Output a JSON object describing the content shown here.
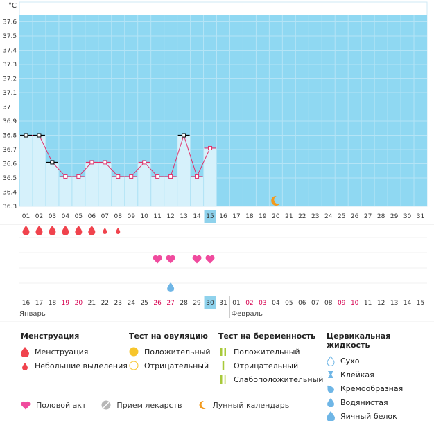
{
  "chart_data": {
    "type": "line",
    "unit_label": "°C",
    "y_ticks": [
      "36.3",
      "36.4",
      "36.5",
      "36.6",
      "36.7",
      "36.8",
      "36.9",
      "37",
      "37.1",
      "37.2",
      "37.3",
      "37.4",
      "37.5",
      "37.6"
    ],
    "ylim": [
      36.3,
      37.65
    ],
    "cycle_days": [
      "01",
      "02",
      "03",
      "04",
      "05",
      "06",
      "07",
      "08",
      "09",
      "10",
      "11",
      "12",
      "13",
      "14",
      "15",
      "16",
      "17",
      "18",
      "19",
      "20",
      "21",
      "22",
      "23",
      "24",
      "25",
      "26",
      "27",
      "28",
      "29",
      "30",
      "31"
    ],
    "today_index": 14,
    "temperatures": [
      36.8,
      36.8,
      36.61,
      36.51,
      36.51,
      36.61,
      36.61,
      36.51,
      36.51,
      36.61,
      36.51,
      36.51,
      36.8,
      36.51,
      36.71
    ],
    "point_colors": [
      "#000000",
      "#000000",
      "#000000",
      "#e0306a",
      "#e0306a",
      "#e0306a",
      "#e0306a",
      "#e0306a",
      "#e0306a",
      "#e0306a",
      "#e0306a",
      "#e0306a",
      "#000000",
      "#e0306a",
      "#e0306a"
    ],
    "moon_day_index": 19,
    "menstruation": [
      {
        "day_index": 0,
        "type": "menstruation"
      },
      {
        "day_index": 1,
        "type": "menstruation"
      },
      {
        "day_index": 2,
        "type": "menstruation"
      },
      {
        "day_index": 3,
        "type": "menstruation"
      },
      {
        "day_index": 4,
        "type": "menstruation"
      },
      {
        "day_index": 5,
        "type": "menstruation"
      },
      {
        "day_index": 6,
        "type": "spotting"
      },
      {
        "day_index": 7,
        "type": "spotting"
      }
    ],
    "intercourse_day_indices": [
      10,
      11,
      13,
      14
    ],
    "egg_white_day_indices": [
      11
    ],
    "dates": [
      "16",
      "17",
      "18",
      "19",
      "20",
      "21",
      "22",
      "23",
      "24",
      "25",
      "26",
      "27",
      "28",
      "29",
      "30",
      "31",
      "01",
      "02",
      "03",
      "04",
      "05",
      "06",
      "07",
      "08",
      "09",
      "10",
      "11",
      "12",
      "13",
      "14",
      "15"
    ],
    "date_colors": [
      "#333",
      "#333",
      "#333",
      "#d6004f",
      "#d6004f",
      "#333",
      "#333",
      "#333",
      "#333",
      "#333",
      "#d6004f",
      "#d6004f",
      "#333",
      "#333",
      "#333",
      "#333",
      "#333",
      "#d6004f",
      "#d6004f",
      "#333",
      "#333",
      "#333",
      "#333",
      "#333",
      "#d6004f",
      "#d6004f",
      "#333",
      "#333",
      "#333",
      "#333",
      "#333"
    ],
    "month_labels": [
      {
        "text": "Январь",
        "day_index": 0
      },
      {
        "text": "Февраль",
        "day_index": 16
      }
    ]
  },
  "legend": {
    "menstruation": {
      "title": "Менструация",
      "items": [
        "Менструация",
        "Небольшие выделения"
      ]
    },
    "ovulation_test": {
      "title": "Тест на овуляцию",
      "items": [
        "Положительный",
        "Отрицательный"
      ]
    },
    "pregnancy_test": {
      "title": "Тест на беременность",
      "items": [
        "Положительный",
        "Отрицательный",
        "Слабоположительный"
      ]
    },
    "cervical_fluid": {
      "title": "Цервикальная жидкость",
      "items": [
        "Сухо",
        "Клейкая",
        "Кремообразная",
        "Водянистая",
        "Яичный белок"
      ]
    },
    "bottom": {
      "intercourse": "Половой акт",
      "medication": "Прием лекарств",
      "lunar": "Лунный календарь"
    }
  },
  "colors": {
    "chart_bg": "#8fd8f2",
    "bar_fill": "#d6f1fb",
    "line": "#e0306a",
    "blood": "#f0434d",
    "heart": "#f04b9e",
    "moon": "#f29a1d",
    "egg_white": "#6fb6e6",
    "today": "#8fd2ec"
  }
}
